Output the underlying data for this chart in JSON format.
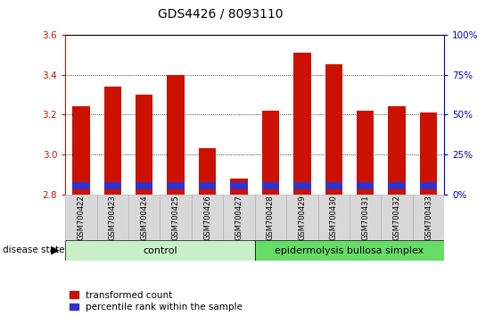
{
  "title": "GDS4426 / 8093110",
  "samples": [
    "GSM700422",
    "GSM700423",
    "GSM700424",
    "GSM700425",
    "GSM700426",
    "GSM700427",
    "GSM700428",
    "GSM700429",
    "GSM700430",
    "GSM700431",
    "GSM700432",
    "GSM700433"
  ],
  "transformed_count": [
    3.24,
    3.34,
    3.3,
    3.4,
    3.03,
    2.88,
    3.22,
    3.51,
    3.45,
    3.22,
    3.24,
    3.21
  ],
  "bar_base": 2.8,
  "blue_bar_height": 0.035,
  "blue_bar_bottom": 2.825,
  "ylim": [
    2.8,
    3.6
  ],
  "y2lim": [
    0,
    100
  ],
  "yticks": [
    2.8,
    3.0,
    3.2,
    3.4,
    3.6
  ],
  "y2ticks": [
    0,
    25,
    50,
    75,
    100
  ],
  "y2ticklabels": [
    "0%",
    "25%",
    "50%",
    "75%",
    "100%"
  ],
  "bar_color": "#cc1100",
  "blue_color": "#3333cc",
  "grid_color": "#000000",
  "title_fontsize": 10,
  "label_color_left": "#cc1100",
  "label_color_right": "#0000cc",
  "control_label": "control",
  "disease_label": "epidermolysis bullosa simplex",
  "disease_state_label": "disease state",
  "control_bg": "#c8f0c8",
  "disease_bg": "#66dd66",
  "legend_red_label": "transformed count",
  "legend_blue_label": "percentile rank within the sample",
  "tick_bg": "#d8d8d8",
  "bar_width": 0.55
}
